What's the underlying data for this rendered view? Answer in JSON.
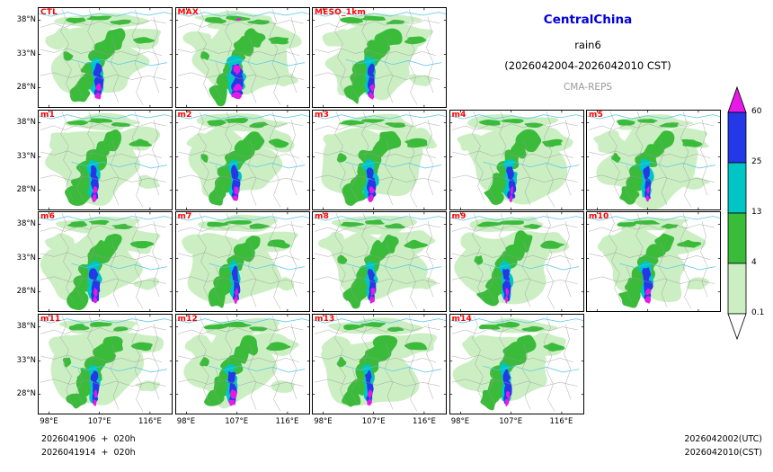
{
  "title": {
    "region": "CentralChina",
    "variable": "rain6",
    "period": "(2026042004-2026042010 CST)",
    "model": "CMA-REPS"
  },
  "panels": [
    {
      "label": "CTL"
    },
    {
      "label": "MAX"
    },
    {
      "label": "MESO_1km"
    },
    {
      "label": "m1"
    },
    {
      "label": "m2"
    },
    {
      "label": "m3"
    },
    {
      "label": "m4"
    },
    {
      "label": "m5"
    },
    {
      "label": "m6"
    },
    {
      "label": "m7"
    },
    {
      "label": "m8"
    },
    {
      "label": "m9"
    },
    {
      "label": "m10"
    },
    {
      "label": "m11"
    },
    {
      "label": "m12"
    },
    {
      "label": "m13"
    },
    {
      "label": "m14"
    }
  ],
  "axes": {
    "y_ticks": [
      "38°N",
      "33°N",
      "28°N"
    ],
    "x_ticks": [
      "98°E",
      "107°E",
      "116°E"
    ]
  },
  "colorbar": {
    "levels": [
      "60",
      "25",
      "13",
      "4",
      "0.1"
    ],
    "colors": {
      "above": "#E619E6",
      "60_25": "#2438E8",
      "25_13": "#00C5C5",
      "13_4": "#3ABB3A",
      "4_01": "#CBEFC3",
      "below": "#FFFFFF"
    }
  },
  "footer": {
    "left_lines": [
      "2026041906  +  020h",
      "2026041914  +  020h"
    ],
    "right_lines": [
      "2026042002(UTC)",
      "2026042010(CST)"
    ]
  },
  "colors": {
    "title_blue": "#0000DD",
    "muted_gray": "#9A9A9A",
    "panel_label_red": "#FF0000",
    "boundary_gray": "#9A9A9A",
    "river_cyan": "#55C3E8"
  },
  "chart_data": {
    "type": "heatmap",
    "subtype": "ensemble-precipitation-maps",
    "title": "CentralChina rain6 (2026042004-2026042010 CST)",
    "model": "CMA-REPS",
    "panel_labels": [
      "CTL",
      "MAX",
      "MESO_1km",
      "m1",
      "m2",
      "m3",
      "m4",
      "m5",
      "m6",
      "m7",
      "m8",
      "m9",
      "m10",
      "m11",
      "m12",
      "m13",
      "m14"
    ],
    "panel_rows": [
      [
        "CTL",
        "MAX",
        "MESO_1km"
      ],
      [
        "m1",
        "m2",
        "m3",
        "m4",
        "m5"
      ],
      [
        "m6",
        "m7",
        "m8",
        "m9",
        "m10"
      ],
      [
        "m11",
        "m12",
        "m13",
        "m14"
      ]
    ],
    "lon_range_deg_e": [
      96,
      120
    ],
    "lat_range_deg_n": [
      25,
      40
    ],
    "x_ticks_deg_e": [
      98,
      107,
      116
    ],
    "y_ticks_deg_n": [
      38,
      33,
      28
    ],
    "colorbar_levels_mm": [
      0.1,
      4,
      13,
      25,
      60
    ],
    "colorbar_colors": [
      "#FFFFFF",
      "#CBEFC3",
      "#3ABB3A",
      "#00C5C5",
      "#2438E8",
      "#E619E6"
    ],
    "init_times": [
      "2026041906 + 020h",
      "2026041914 + 020h"
    ],
    "valid_time_utc": "2026042002(UTC)",
    "valid_time_cst": "2026042010(CST)",
    "description": "17-panel ensemble of 6-h accumulated precipitation over Central China. All members show a broad light-green (0.1-4 mm) area with a green (4-13 mm) SW-NE band, and an intense quasi-meridional core near 107°E between ~26-33°N reaching cyan (13-25), blue (25-60) and magenta (>60 mm); the MAX panel shows the largest >60 mm coverage. Scattered green streaks also appear near 36-37°N."
  }
}
